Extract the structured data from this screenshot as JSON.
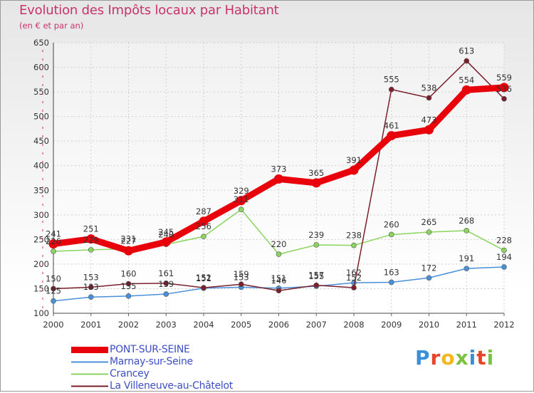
{
  "title": "Evolution des Impôts locaux par Habitant",
  "subtitle": "(en € et par an)",
  "logo": {
    "text": "Proxiti",
    "colors": [
      "#3b8fd9",
      "#e8442c",
      "#f1b81e",
      "#7cc142",
      "#3b8fd9",
      "#e8442c",
      "#7cc142"
    ]
  },
  "chart_data": {
    "type": "line",
    "x": [
      "2000",
      "2001",
      "2002",
      "2003",
      "2004",
      "2005",
      "2006",
      "2007",
      "2008",
      "2009",
      "2010",
      "2011",
      "2012"
    ],
    "ylim": [
      100,
      650
    ],
    "yticks": [
      100,
      150,
      200,
      250,
      300,
      350,
      400,
      450,
      500,
      550,
      600,
      650
    ],
    "grid": true,
    "legend_position": "bottom-left",
    "series": [
      {
        "name": "PONT-SUR-SEINE",
        "color": "#e8000b",
        "values": [
          241,
          251,
          227,
          245,
          287,
          329,
          373,
          365,
          391,
          461,
          473,
          554,
          559
        ]
      },
      {
        "name": "Marnay-sur-Seine",
        "color": "#4a90d9",
        "values": [
          125,
          133,
          135,
          139,
          151,
          153,
          151,
          155,
          162,
          163,
          172,
          191,
          194
        ]
      },
      {
        "name": "Crancey",
        "color": "#8bd45f",
        "values": [
          226,
          229,
          231,
          240,
          256,
          311,
          220,
          239,
          238,
          260,
          265,
          268,
          228
        ]
      },
      {
        "name": "La Villeneuve-au-Châtelot",
        "color": "#7a1f2b",
        "values": [
          150,
          153,
          160,
          161,
          152,
          159,
          146,
          157,
          152,
          555,
          538,
          613,
          536
        ]
      }
    ],
    "labels": [
      {
        "series": 0,
        "values": [
          "241",
          "251",
          "227",
          "245",
          "287",
          "329",
          "373",
          "365",
          "391",
          "461",
          "473",
          "554",
          "559"
        ]
      },
      {
        "series": 1,
        "values": [
          "125",
          "133",
          "135",
          "139",
          "151",
          "153",
          "151",
          "155",
          "162",
          "163",
          "172",
          "191",
          "194"
        ]
      },
      {
        "series": 2,
        "values": [
          "226",
          "229",
          "231",
          "240",
          "256",
          "311",
          "220",
          "239",
          "238",
          "260",
          "265",
          "268",
          "228"
        ]
      },
      {
        "series": 3,
        "values": [
          "150",
          "153",
          "160",
          "161",
          "152",
          "159",
          "146",
          "157",
          "152",
          "555",
          "538",
          "613",
          "536"
        ]
      }
    ]
  }
}
